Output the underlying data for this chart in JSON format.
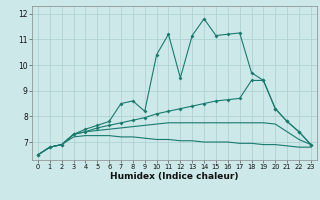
{
  "xlabel": "Humidex (Indice chaleur)",
  "x_values": [
    0,
    1,
    2,
    3,
    4,
    5,
    6,
    7,
    8,
    9,
    10,
    11,
    12,
    13,
    14,
    15,
    16,
    17,
    18,
    19,
    20,
    21,
    22,
    23
  ],
  "line1": [
    6.5,
    6.8,
    6.9,
    7.3,
    7.5,
    7.65,
    7.8,
    8.5,
    8.6,
    8.2,
    10.4,
    11.2,
    9.5,
    11.15,
    11.8,
    11.15,
    11.2,
    11.25,
    9.7,
    9.4,
    8.3,
    7.8,
    7.4,
    6.9
  ],
  "line2": [
    6.5,
    6.8,
    6.9,
    7.3,
    7.4,
    7.55,
    7.65,
    7.75,
    7.85,
    7.95,
    8.1,
    8.2,
    8.3,
    8.4,
    8.5,
    8.6,
    8.65,
    8.7,
    9.4,
    9.4,
    8.3,
    7.8,
    7.4,
    6.9
  ],
  "line3": [
    6.5,
    6.8,
    6.9,
    7.3,
    7.4,
    7.45,
    7.5,
    7.55,
    7.6,
    7.65,
    7.7,
    7.75,
    7.75,
    7.75,
    7.75,
    7.75,
    7.75,
    7.75,
    7.75,
    7.75,
    7.7,
    7.4,
    7.1,
    6.9
  ],
  "line4": [
    6.5,
    6.8,
    6.9,
    7.2,
    7.25,
    7.25,
    7.25,
    7.2,
    7.2,
    7.15,
    7.1,
    7.1,
    7.05,
    7.05,
    7.0,
    7.0,
    7.0,
    6.95,
    6.95,
    6.9,
    6.9,
    6.85,
    6.8,
    6.8
  ],
  "line_color": "#1a7a6e",
  "bg_color": "#cce8e8",
  "grid_color": "#aacfcf",
  "ylim": [
    6.3,
    12.3
  ],
  "yticks": [
    7,
    8,
    9,
    10,
    11,
    12
  ],
  "xticks": [
    0,
    1,
    2,
    3,
    4,
    5,
    6,
    7,
    8,
    9,
    10,
    11,
    12,
    13,
    14,
    15,
    16,
    17,
    18,
    19,
    20,
    21,
    22,
    23
  ]
}
